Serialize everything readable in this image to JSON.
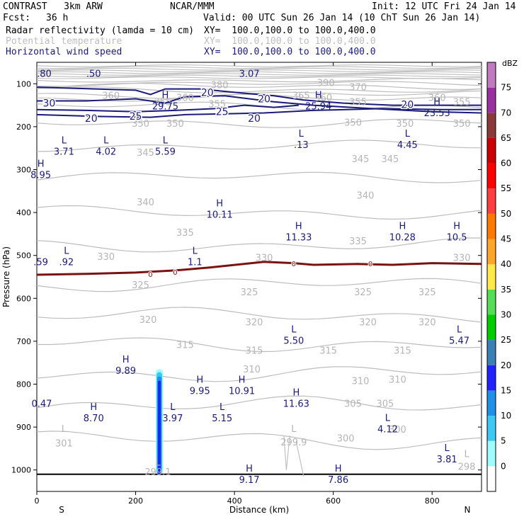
{
  "header": {
    "model": "CONTRAST   3km ARW",
    "org": "NCAR/MMM",
    "init": "Init: 12 UTC Fri 24 Jan 14",
    "fcst_label": "Fcst:",
    "fcst_value": "36 h",
    "valid": "Valid: 00 UTC Sun 26 Jan 14 (10 ChT Sun 26 Jan 14)",
    "fields": [
      {
        "name": "Radar reflectivity (lamda = 10 cm)",
        "xy": "XY=  100.0,100.0 to 100.0,400.0",
        "color": "#000000"
      },
      {
        "name": "Potential temperature",
        "xy": "XY=  100.0,100.0 to 100.0,400.0",
        "color": "#bdbdbd"
      },
      {
        "name": "Horizontal wind speed",
        "xy": "XY=  100.0,100.0 to 100.0,400.0",
        "color": "#1a1a7a"
      }
    ]
  },
  "chart_data": {
    "type": "contour-cross-section",
    "xlabel": "Distance (km)",
    "ylabel": "Pressure (hPa)",
    "xlim": [
      0,
      900
    ],
    "ylim": [
      1050,
      50
    ],
    "x_ticks": [
      0,
      200,
      400,
      600,
      800
    ],
    "y_ticks": [
      100,
      200,
      300,
      400,
      500,
      600,
      700,
      800,
      900,
      1000
    ],
    "left_end": "S",
    "right_end": "N",
    "colorbar": {
      "unit": "dBZ",
      "levels": [
        0,
        5,
        10,
        15,
        20,
        25,
        30,
        35,
        40,
        45,
        50,
        55,
        60,
        65,
        70,
        75
      ],
      "colors": [
        "#ffffff",
        "#9ffcfc",
        "#3ec9f5",
        "#1f8fe8",
        "#2222ff",
        "#3a7fb5",
        "#00cc00",
        "#55dd55",
        "#ffe94a",
        "#ffa52b",
        "#ff7a00",
        "#ff3f3f",
        "#ff0000",
        "#cc0000",
        "#8b3a3a",
        "#9b2fa1",
        "#c07ac0"
      ]
    },
    "theta_labels": [
      {
        "text": "390",
        "x": 585,
        "p": 105
      },
      {
        "text": "380",
        "x": 370,
        "p": 110
      },
      {
        "text": "370",
        "x": 650,
        "p": 115
      },
      {
        "text": "365",
        "x": 535,
        "p": 135
      },
      {
        "text": "360",
        "x": 150,
        "p": 135
      },
      {
        "text": "360",
        "x": 300,
        "p": 140
      },
      {
        "text": "360",
        "x": 580,
        "p": 140
      },
      {
        "text": "360",
        "x": 810,
        "p": 140
      },
      {
        "text": "355",
        "x": 365,
        "p": 155
      },
      {
        "text": "355",
        "x": 255,
        "p": 150
      },
      {
        "text": "355",
        "x": 650,
        "p": 150
      },
      {
        "text": "355",
        "x": 860,
        "p": 150
      },
      {
        "text": "350",
        "x": 210,
        "p": 200
      },
      {
        "text": "350",
        "x": 280,
        "p": 200
      },
      {
        "text": "350",
        "x": 640,
        "p": 198
      },
      {
        "text": "350",
        "x": 745,
        "p": 200
      },
      {
        "text": "350",
        "x": 860,
        "p": 200
      },
      {
        "text": "345",
        "x": 220,
        "p": 268
      },
      {
        "text": "345",
        "x": 655,
        "p": 283
      },
      {
        "text": "345",
        "x": 715,
        "p": 283
      },
      {
        "text": "340",
        "x": 220,
        "p": 383
      },
      {
        "text": "340",
        "x": 665,
        "p": 368
      },
      {
        "text": "335",
        "x": 300,
        "p": 454
      },
      {
        "text": "335",
        "x": 650,
        "p": 474
      },
      {
        "text": "330",
        "x": 140,
        "p": 510
      },
      {
        "text": "330",
        "x": 460,
        "p": 513
      },
      {
        "text": "330",
        "x": 860,
        "p": 513
      },
      {
        "text": "325",
        "x": 210,
        "p": 576
      },
      {
        "text": "325",
        "x": 430,
        "p": 593
      },
      {
        "text": "325",
        "x": 660,
        "p": 593
      },
      {
        "text": "325",
        "x": 790,
        "p": 593
      },
      {
        "text": "320",
        "x": 225,
        "p": 657
      },
      {
        "text": "320",
        "x": 440,
        "p": 663
      },
      {
        "text": "320",
        "x": 670,
        "p": 663
      },
      {
        "text": "320",
        "x": 790,
        "p": 663
      },
      {
        "text": "315",
        "x": 300,
        "p": 716
      },
      {
        "text": "315",
        "x": 440,
        "p": 729
      },
      {
        "text": "315",
        "x": 590,
        "p": 729
      },
      {
        "text": "315",
        "x": 740,
        "p": 729
      },
      {
        "text": "310",
        "x": 435,
        "p": 773
      },
      {
        "text": "310",
        "x": 655,
        "p": 800
      },
      {
        "text": "310",
        "x": 730,
        "p": 797
      },
      {
        "text": "305",
        "x": 640,
        "p": 853
      },
      {
        "text": "305",
        "x": 705,
        "p": 853
      },
      {
        "text": "300",
        "x": 625,
        "p": 934
      },
      {
        "text": "300",
        "x": 730,
        "p": 913
      },
      {
        "text": "301",
        "x": 55,
        "p": 945
      },
      {
        "text": "299.9",
        "x": 520,
        "p": 943
      },
      {
        "text": "299.1",
        "x": 245,
        "p": 1012
      },
      {
        "text": "298",
        "x": 870,
        "p": 1000
      }
    ],
    "theta_extremes": [
      {
        "type": "L",
        "value": "301",
        "x": 55,
        "p": 911
      },
      {
        "type": "L",
        "value": "299.9",
        "x": 520,
        "p": 911
      },
      {
        "type": "L",
        "value": "299.1",
        "x": 245,
        "p": 990
      },
      {
        "type": "L",
        "value": "298",
        "x": 870,
        "p": 970
      }
    ],
    "wind_contour_labels": [
      {
        "text": "30",
        "x": 25,
        "p": 145
      },
      {
        "text": "20",
        "x": 345,
        "p": 120
      },
      {
        "text": "20",
        "x": 460,
        "p": 135
      },
      {
        "text": "20",
        "x": 750,
        "p": 148
      },
      {
        "text": "25",
        "x": 375,
        "p": 165
      },
      {
        "text": "25",
        "x": 200,
        "p": 175
      },
      {
        "text": "20",
        "x": 110,
        "p": 180
      },
      {
        "text": "20",
        "x": 440,
        "p": 180
      }
    ],
    "wind_extremes": [
      {
        "type": "",
        "value": ".80",
        "x": 15,
        "p": 84
      },
      {
        "type": "",
        "value": ".50",
        "x": 115,
        "p": 84
      },
      {
        "type": "",
        "value": "3.07",
        "x": 430,
        "p": 84
      },
      {
        "type": "H",
        "value": "29.75",
        "x": 260,
        "p": 160
      },
      {
        "type": "H",
        "value": "25.94",
        "x": 570,
        "p": 160
      },
      {
        "type": "H",
        "value": "23.53",
        "x": 810,
        "p": 175
      },
      {
        "type": "L",
        "value": "3.71",
        "x": 55,
        "p": 265
      },
      {
        "type": "L",
        "value": "4.02",
        "x": 140,
        "p": 265
      },
      {
        "type": "L",
        "value": "5.59",
        "x": 260,
        "p": 265
      },
      {
        "type": "L",
        "value": ".13",
        "x": 535,
        "p": 250
      },
      {
        "type": "L",
        "value": "4.45",
        "x": 750,
        "p": 250
      },
      {
        "type": "H",
        "value": "8.95",
        "x": 8,
        "p": 320
      },
      {
        "type": "H",
        "value": "10.11",
        "x": 370,
        "p": 412
      },
      {
        "type": "H",
        "value": "11.33",
        "x": 530,
        "p": 465
      },
      {
        "type": "H",
        "value": "10.28",
        "x": 740,
        "p": 465
      },
      {
        "type": "H",
        "value": "10.5",
        "x": 850,
        "p": 465
      },
      {
        "type": "",
        "value": ".59",
        "x": 8,
        "p": 523
      },
      {
        "type": "L",
        "value": ".92",
        "x": 60,
        "p": 523
      },
      {
        "type": "L",
        "value": "1.1",
        "x": 320,
        "p": 523
      },
      {
        "type": "L",
        "value": "5.50",
        "x": 520,
        "p": 706
      },
      {
        "type": "L",
        "value": "5.47",
        "x": 855,
        "p": 706
      },
      {
        "type": "H",
        "value": "9.89",
        "x": 180,
        "p": 776
      },
      {
        "type": "H",
        "value": "9.95",
        "x": 330,
        "p": 823
      },
      {
        "type": "H",
        "value": "10.91",
        "x": 415,
        "p": 823
      },
      {
        "type": "H",
        "value": "11.63",
        "x": 525,
        "p": 853
      },
      {
        "type": "",
        "value": "0.47",
        "x": 10,
        "p": 853
      },
      {
        "type": "H",
        "value": "8.70",
        "x": 115,
        "p": 887
      },
      {
        "type": "L",
        "value": "3.97",
        "x": 275,
        "p": 887
      },
      {
        "type": "L",
        "value": "5.15",
        "x": 375,
        "p": 887
      },
      {
        "type": "L",
        "value": "4.12",
        "x": 710,
        "p": 912
      },
      {
        "type": "L",
        "value": "3.81",
        "x": 830,
        "p": 982
      },
      {
        "type": "H",
        "value": "9.17",
        "x": 430,
        "p": 1030
      },
      {
        "type": "H",
        "value": "7.86",
        "x": 610,
        "p": 1030
      }
    ],
    "zero_line_labels": [
      {
        "text": "0",
        "x": 230,
        "p": 545
      },
      {
        "text": "0",
        "x": 280,
        "p": 540
      },
      {
        "text": "0",
        "x": 520,
        "p": 520
      },
      {
        "text": "0",
        "x": 675,
        "p": 520
      }
    ]
  }
}
